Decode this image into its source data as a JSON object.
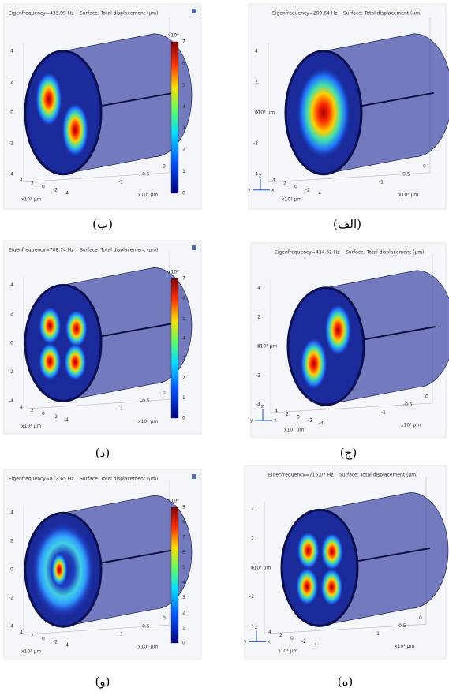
{
  "axis_labels": {
    "z_ticks": [
      "4",
      "2",
      "0",
      "-2",
      "-4"
    ],
    "x_ticks": [
      "4",
      "2",
      "0",
      "-2",
      "-4"
    ],
    "y_ticks": [
      "-1",
      "-0.5",
      "0"
    ],
    "x_unit": "x10³ µm",
    "y_unit": "x10⁴ µm",
    "triad": [
      "z",
      "y",
      "x"
    ]
  },
  "panels": [
    {
      "title": "Eigenfrequency=433.99 Hz",
      "surface": "Surface: Total displacement (µm)",
      "caption": "(ب)",
      "colorbar": {
        "exponent": "x10⁶",
        "ticks": [
          7,
          6,
          5,
          4,
          3,
          2,
          1,
          0
        ]
      }
    },
    {
      "title": "Eigenfrequency=209.64 Hz",
      "surface": "Surface: Total displacement (µm)",
      "caption": "(الف)"
    },
    {
      "title": "Eigenfrequency=708.74 Hz",
      "surface": "Surface: Total displacement (µm)",
      "caption": "(د)",
      "colorbar": {
        "exponent": "x10⁶",
        "ticks": [
          7,
          6,
          5,
          4,
          3,
          2,
          1,
          0
        ]
      }
    },
    {
      "title": "Eigenfrequency=434.62 Hz",
      "surface": "Surface: Total displacement (µm)",
      "caption": "(ج)"
    },
    {
      "title": "Eigenfrequency=812.65 Hz",
      "surface": "Surface: Total displacement (µm)",
      "caption": "(و)",
      "colorbar": {
        "exponent": "x10⁶",
        "ticks": [
          9,
          8,
          7,
          6,
          5,
          4,
          3,
          2,
          1,
          0
        ]
      }
    },
    {
      "title": "Eigenfrequency=715.07 Hz",
      "surface": "Surface: Total displacement (µm)",
      "caption": "(ه)"
    }
  ]
}
